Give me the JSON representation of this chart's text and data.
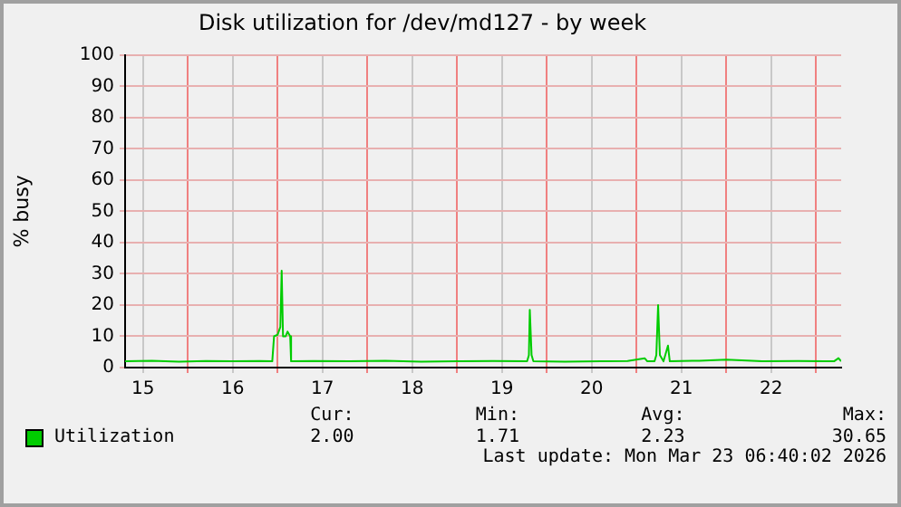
{
  "chart_data": {
    "type": "line",
    "title": "Disk utilization for /dev/md127 - by week",
    "ylabel": "% busy",
    "x": [
      15.3,
      15.6,
      15.9,
      16.2,
      16.5,
      16.8,
      16.94,
      16.96,
      17.0,
      17.03,
      17.045,
      17.06,
      17.09,
      17.11,
      17.14,
      17.15,
      17.4,
      17.8,
      18.2,
      18.6,
      19.0,
      19.4,
      19.78,
      19.8,
      19.81,
      19.83,
      19.85,
      20.2,
      20.6,
      20.9,
      21.09,
      21.12,
      21.2,
      21.22,
      21.24,
      21.26,
      21.3,
      21.35,
      21.37,
      21.7,
      22.0,
      22.4,
      22.8,
      23.1,
      23.2,
      23.25,
      23.28
    ],
    "series": [
      {
        "name": "Utilization",
        "color": "#00cc00",
        "values": [
          2,
          2.2,
          1.9,
          2.1,
          2,
          2.1,
          2,
          10,
          10.5,
          13,
          31,
          10,
          10,
          11.5,
          10,
          2,
          2.1,
          2,
          2.2,
          1.9,
          2,
          2.1,
          2,
          4,
          18.5,
          4,
          2,
          1.9,
          2,
          2.1,
          3,
          2,
          2,
          4,
          20,
          4,
          2,
          7,
          2,
          2.2,
          2.5,
          2,
          2.1,
          2,
          2,
          3,
          2
        ]
      }
    ],
    "xlim": [
      15.3,
      23.28
    ],
    "xticks": [
      {
        "value": 15.5,
        "label": "15"
      },
      {
        "value": 16,
        "label": null
      },
      {
        "value": 16.5,
        "label": "16"
      },
      {
        "value": 17,
        "label": null
      },
      {
        "value": 17.5,
        "label": "17"
      },
      {
        "value": 18,
        "label": null
      },
      {
        "value": 18.5,
        "label": "18"
      },
      {
        "value": 19,
        "label": null
      },
      {
        "value": 19.5,
        "label": "19"
      },
      {
        "value": 20,
        "label": null
      },
      {
        "value": 20.5,
        "label": "20"
      },
      {
        "value": 21,
        "label": null
      },
      {
        "value": 21.5,
        "label": "21"
      },
      {
        "value": 22,
        "label": null
      },
      {
        "value": 22.5,
        "label": "22"
      },
      {
        "value": 23,
        "label": null
      }
    ],
    "ylim": [
      0,
      100
    ],
    "yticks": [
      0,
      10,
      20,
      30,
      40,
      50,
      60,
      70,
      80,
      90,
      100
    ],
    "grid": true,
    "legend": "bottom",
    "marker": "none",
    "line_style": "solid",
    "annotations": [
      "Cur:",
      "Min:",
      "Avg:",
      "Max:",
      "2.00",
      "1.71",
      "2.23",
      "30.65",
      "Last update: Mon Mar 23 06:40:02 2026"
    ]
  }
}
